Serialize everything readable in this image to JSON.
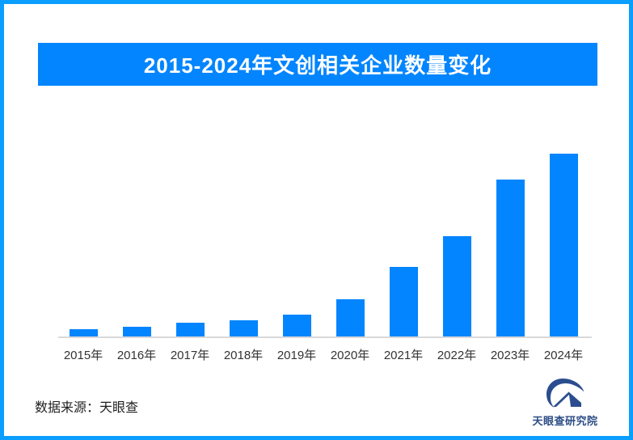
{
  "page": {
    "background": "#ffffff",
    "border_color": "#0a9eff"
  },
  "header": {
    "title": "2015-2024年文创相关企业数量变化",
    "banner_color": "#0285fe",
    "title_color": "#ffffff"
  },
  "chart_data": {
    "type": "bar",
    "title": "2015-2024年文创相关企业数量变化",
    "categories": [
      "2015年",
      "2016年",
      "2017年",
      "2018年",
      "2019年",
      "2020年",
      "2021年",
      "2022年",
      "2023年",
      "2024年"
    ],
    "values": [
      4.0,
      5.3,
      7.5,
      8.8,
      11.9,
      20.4,
      38.1,
      54.9,
      85.8,
      100
    ],
    "value_note": "No y-axis, gridlines or data labels are shown in the chart; values are relative bar heights normalized to 2024 = 100.",
    "xlabel": "",
    "ylabel": "",
    "ylim": [
      0,
      100
    ],
    "bar_color": "#0285fe",
    "axis_line_color": "#d9d9d9",
    "tick_label_color": "#333333",
    "grid": false,
    "legend": false,
    "y_axis_shown": false
  },
  "footer": {
    "source_label": "数据来源：天眼查"
  },
  "brand": {
    "name": "天眼查研究院",
    "icon": "tianyancha-eye-logo-icon",
    "icon_color": "#2b4d8f",
    "text_color": "#2c4d86"
  }
}
